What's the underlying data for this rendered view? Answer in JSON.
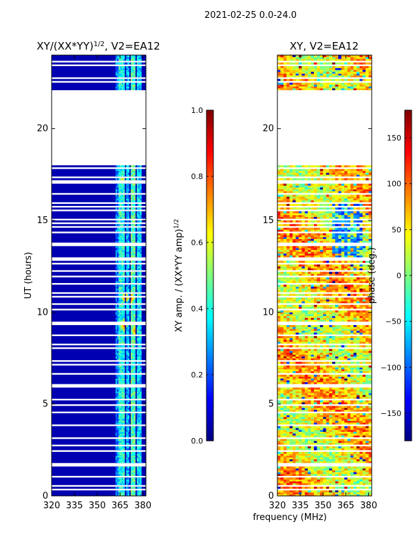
{
  "figure": {
    "suptitle": "2021-02-25 0.0-24.0",
    "shared_xlabel": "frequency (MHz)"
  },
  "chart_data": [
    {
      "type": "heatmap",
      "title": "XY/(XX*YY)",
      "title_exponent": "1/2",
      "title_suffix": ", V2=EA12",
      "xlabel": "",
      "ylabel": "UT (hours)",
      "xlim": [
        320,
        382
      ],
      "ylim": [
        0,
        24
      ],
      "xticks": [
        320,
        335,
        350,
        365,
        380
      ],
      "yticks": [
        0,
        5,
        10,
        15,
        20
      ],
      "colorbar": {
        "label": "XY amp. / (XX*YY amp)",
        "label_exponent": "1/2",
        "range": [
          0.0,
          1.0
        ],
        "ticks": [
          "0.0",
          "0.2",
          "0.4",
          "0.6",
          "0.8",
          "1.0"
        ],
        "tick_values": [
          0.0,
          0.2,
          0.4,
          0.6,
          0.8,
          1.0
        ]
      },
      "data_gaps_hours": [
        [
          18.0,
          22.0
        ]
      ],
      "background_value": 0.05,
      "active_bands_mhz": [
        [
          362,
          364
        ],
        [
          364,
          368
        ],
        [
          369,
          371
        ],
        [
          372,
          375
        ],
        [
          376,
          379
        ]
      ],
      "band_values": [
        0.25,
        0.4,
        0.3,
        0.45,
        0.35
      ],
      "hotspots": [
        {
          "freq": 368,
          "ut": 10.8,
          "value": 0.85
        },
        {
          "freq": 372,
          "ut": 10.8,
          "value": 0.8
        },
        {
          "freq": 367,
          "ut": 9.3,
          "value": 0.8
        },
        {
          "freq": 374,
          "ut": 9.0,
          "value": 0.75
        },
        {
          "freq": 366,
          "ut": 17.2,
          "value": 0.7
        },
        {
          "freq": 372,
          "ut": 23.0,
          "value": 0.5
        }
      ]
    },
    {
      "type": "heatmap",
      "title": "XY, V2=EA12",
      "xlabel": "frequency (MHz)",
      "ylabel": "",
      "xlim": [
        320,
        382
      ],
      "ylim": [
        0,
        24
      ],
      "xticks": [
        320,
        335,
        350,
        365,
        380
      ],
      "yticks": [
        0,
        5,
        10,
        15,
        20
      ],
      "colorbar": {
        "label": "phase (deg.)",
        "range": [
          -180,
          180
        ],
        "ticks": [
          "150",
          "100",
          "50",
          "0",
          "−50",
          "−100",
          "−150"
        ],
        "tick_values": [
          150,
          100,
          50,
          0,
          -50,
          -100,
          -150
        ]
      },
      "data_gaps_hours": [
        [
          18.0,
          22.0
        ]
      ],
      "value_distribution": "mostly 20 to 90 deg with scattered -180 to 180 patches"
    }
  ],
  "colors": {
    "jet": [
      "#00007f",
      "#0000ff",
      "#007fff",
      "#00ffff",
      "#7fff7f",
      "#ffff00",
      "#ff7f00",
      "#ff0000",
      "#7f0000"
    ],
    "axes": "#000000",
    "background": "#ffffff"
  }
}
